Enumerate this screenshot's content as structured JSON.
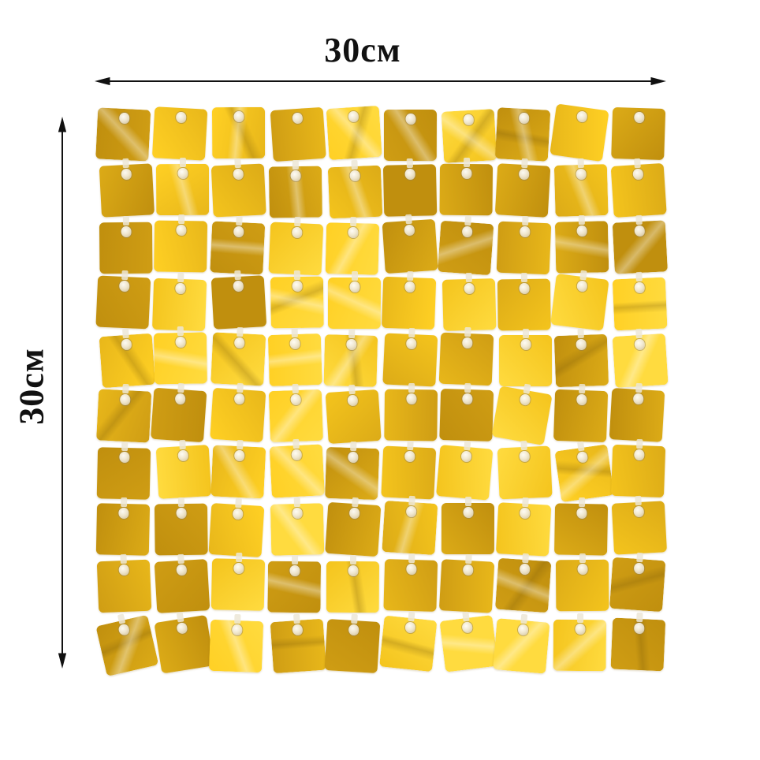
{
  "image": {
    "background": "#ffffff",
    "annotation_color": "#111111"
  },
  "annotations": {
    "width_label": "30см",
    "height_label": "30см"
  },
  "panel": {
    "rows": 10,
    "cols": 10,
    "sequin_count": 100,
    "sequin_shape": "rounded-square",
    "palette": [
      "#c08f0e",
      "#cf9d14",
      "#dcab17",
      "#e8b71a",
      "#f4c41d",
      "#ffd024",
      "#ffdb3f"
    ],
    "grommet_color": "#f2ecdc",
    "sheen_color": "#ffffff"
  }
}
